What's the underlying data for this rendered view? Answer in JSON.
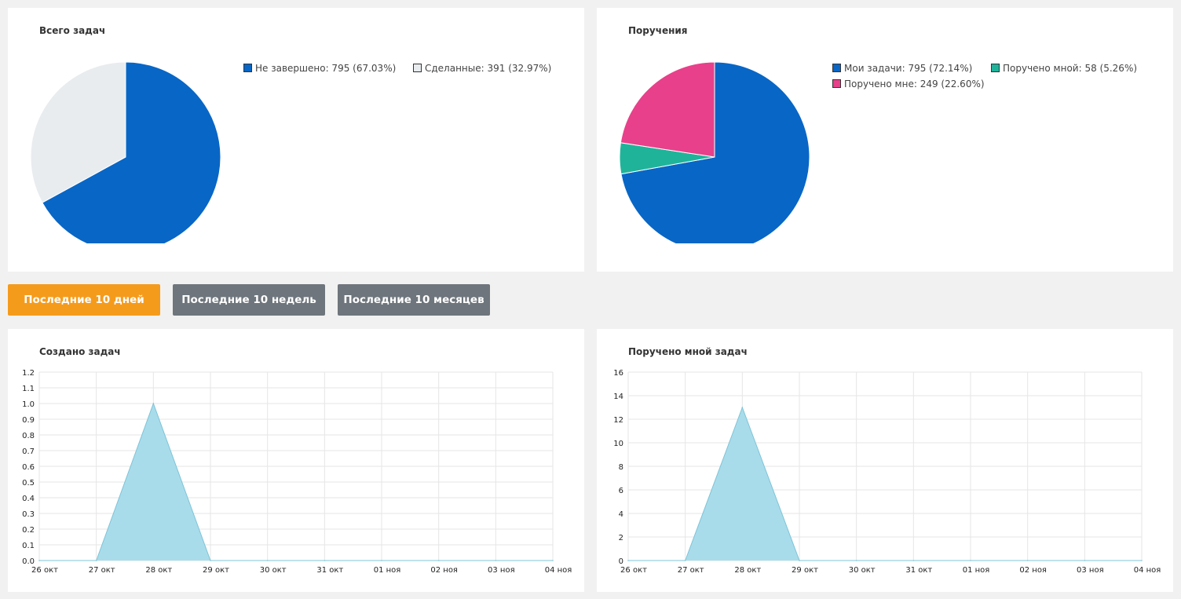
{
  "charts_top": [
    {
      "title": "Всего задач",
      "legend_rows": [
        [
          "Не завершено: 795 (67.03%)",
          "Сделанные: 391 (32.97%)"
        ]
      ]
    },
    {
      "title": "Поручения",
      "legend_rows": [
        [
          "Мои задачи: 795 (72.14%)",
          "Поручено мной: 58 (5.26%)"
        ],
        [
          "Поручено мне: 249 (22.60%)"
        ]
      ]
    }
  ],
  "buttons": [
    {
      "label": "Последние 10 дней",
      "active": true
    },
    {
      "label": "Последние 10 недель",
      "active": false
    },
    {
      "label": "Последние 10 месяцев",
      "active": false
    }
  ],
  "colors": {
    "blue": "#0866c6",
    "light_gray": "#e8ecef",
    "teal": "#1fb49a",
    "pink": "#e8408a",
    "area_fill": "#a9dcea",
    "area_stroke": "#7cc4d8",
    "btn_active": "#f59b1c",
    "btn_inactive": "#6e757c"
  },
  "chart_data": [
    {
      "type": "pie",
      "title": "Всего задач",
      "slices": [
        {
          "label": "Не завершено",
          "value": 795,
          "percent": 67.03,
          "color": "#0866c6"
        },
        {
          "label": "Сделанные",
          "value": 391,
          "percent": 32.97,
          "color": "#e8ecef"
        }
      ]
    },
    {
      "type": "pie",
      "title": "Поручения",
      "slices": [
        {
          "label": "Мои задачи",
          "value": 795,
          "percent": 72.14,
          "color": "#0866c6"
        },
        {
          "label": "Поручено мной",
          "value": 58,
          "percent": 5.26,
          "color": "#1fb49a"
        },
        {
          "label": "Поручено мне",
          "value": 249,
          "percent": 22.6,
          "color": "#e8408a"
        }
      ]
    },
    {
      "type": "area",
      "title": "Создано задач",
      "categories": [
        "26 окт",
        "27 окт",
        "28 окт",
        "29 окт",
        "30 окт",
        "31 окт",
        "01 ноя",
        "02 ноя",
        "03 ноя",
        "04 ноя"
      ],
      "values": [
        0,
        0,
        1,
        0,
        0,
        0,
        0,
        0,
        0,
        0
      ],
      "ylim": [
        0,
        1.2
      ],
      "yticks": [
        "0.0",
        "0.1",
        "0.2",
        "0.3",
        "0.4",
        "0.5",
        "0.6",
        "0.7",
        "0.8",
        "0.9",
        "1.0",
        "1.1",
        "1.2"
      ],
      "grid": true
    },
    {
      "type": "area",
      "title": "Поручено мной задач",
      "categories": [
        "26 окт",
        "27 окт",
        "28 окт",
        "29 окт",
        "30 окт",
        "31 окт",
        "01 ноя",
        "02 ноя",
        "03 ноя",
        "04 ноя"
      ],
      "values": [
        0,
        0,
        13,
        0,
        0,
        0,
        0,
        0,
        0,
        0
      ],
      "ylim": [
        0,
        16
      ],
      "yticks": [
        "0",
        "2",
        "4",
        "6",
        "8",
        "10",
        "12",
        "14",
        "16"
      ],
      "grid": true
    }
  ]
}
